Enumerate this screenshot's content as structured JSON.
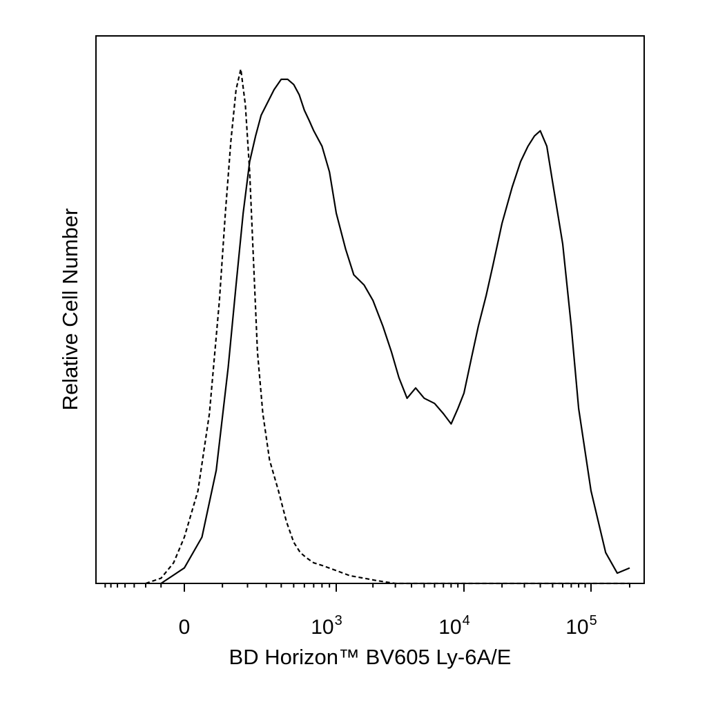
{
  "chart_data": {
    "type": "line",
    "title": "",
    "xlabel": "BD Horizon™ BV605 Ly-6A/E",
    "ylabel": "Relative Cell Number",
    "x_scale": "biexponential",
    "xlim": [
      -800,
      200000
    ],
    "ylim": [
      0,
      1.0
    ],
    "grid": false,
    "legend": "none",
    "x_tick_labels": [
      {
        "value": 0,
        "label": "0"
      },
      {
        "value": 1000,
        "label": "10",
        "sup": "3"
      },
      {
        "value": 10000,
        "label": "10",
        "sup": "4"
      },
      {
        "value": 100000,
        "label": "10",
        "sup": "5"
      }
    ],
    "series": [
      {
        "style": "dashed",
        "color": "#000000",
        "x": [
          -200,
          -100,
          -40,
          0,
          30,
          60,
          90,
          110,
          130,
          150,
          170,
          190,
          210,
          230,
          250,
          280,
          320,
          380,
          440,
          500,
          560,
          620,
          700,
          800,
          1000,
          1300,
          1700,
          2200,
          3000,
          4000,
          6000,
          10000,
          20000,
          50000,
          100000,
          200000
        ],
        "y": [
          0.0,
          0.01,
          0.04,
          0.09,
          0.18,
          0.33,
          0.55,
          0.72,
          0.86,
          0.96,
          1.0,
          0.93,
          0.8,
          0.62,
          0.45,
          0.33,
          0.24,
          0.18,
          0.12,
          0.08,
          0.06,
          0.05,
          0.04,
          0.035,
          0.025,
          0.015,
          0.01,
          0.005,
          0.0,
          0.0,
          0.0,
          0.0,
          0.0,
          0.0,
          0.0,
          0.0
        ]
      },
      {
        "style": "solid",
        "color": "#000000",
        "x": [
          -100,
          0,
          40,
          80,
          120,
          150,
          180,
          210,
          240,
          270,
          300,
          350,
          400,
          450,
          500,
          550,
          600,
          650,
          700,
          800,
          900,
          1000,
          1200,
          1400,
          1700,
          2000,
          2400,
          2800,
          3200,
          3700,
          4300,
          5000,
          6000,
          7000,
          8000,
          9000,
          10000,
          11500,
          13000,
          15000,
          17000,
          20000,
          24000,
          28000,
          32000,
          36000,
          40000,
          45000,
          50000,
          60000,
          70000,
          80000,
          100000,
          130000,
          160000,
          200000
        ],
        "y": [
          0.0,
          0.03,
          0.09,
          0.22,
          0.42,
          0.58,
          0.72,
          0.82,
          0.87,
          0.91,
          0.93,
          0.96,
          0.98,
          0.98,
          0.97,
          0.95,
          0.92,
          0.9,
          0.88,
          0.85,
          0.8,
          0.72,
          0.65,
          0.6,
          0.58,
          0.55,
          0.5,
          0.45,
          0.4,
          0.36,
          0.38,
          0.36,
          0.35,
          0.33,
          0.31,
          0.34,
          0.37,
          0.44,
          0.5,
          0.56,
          0.62,
          0.7,
          0.77,
          0.82,
          0.85,
          0.87,
          0.88,
          0.85,
          0.78,
          0.66,
          0.5,
          0.34,
          0.18,
          0.06,
          0.02,
          0.03
        ]
      }
    ]
  }
}
